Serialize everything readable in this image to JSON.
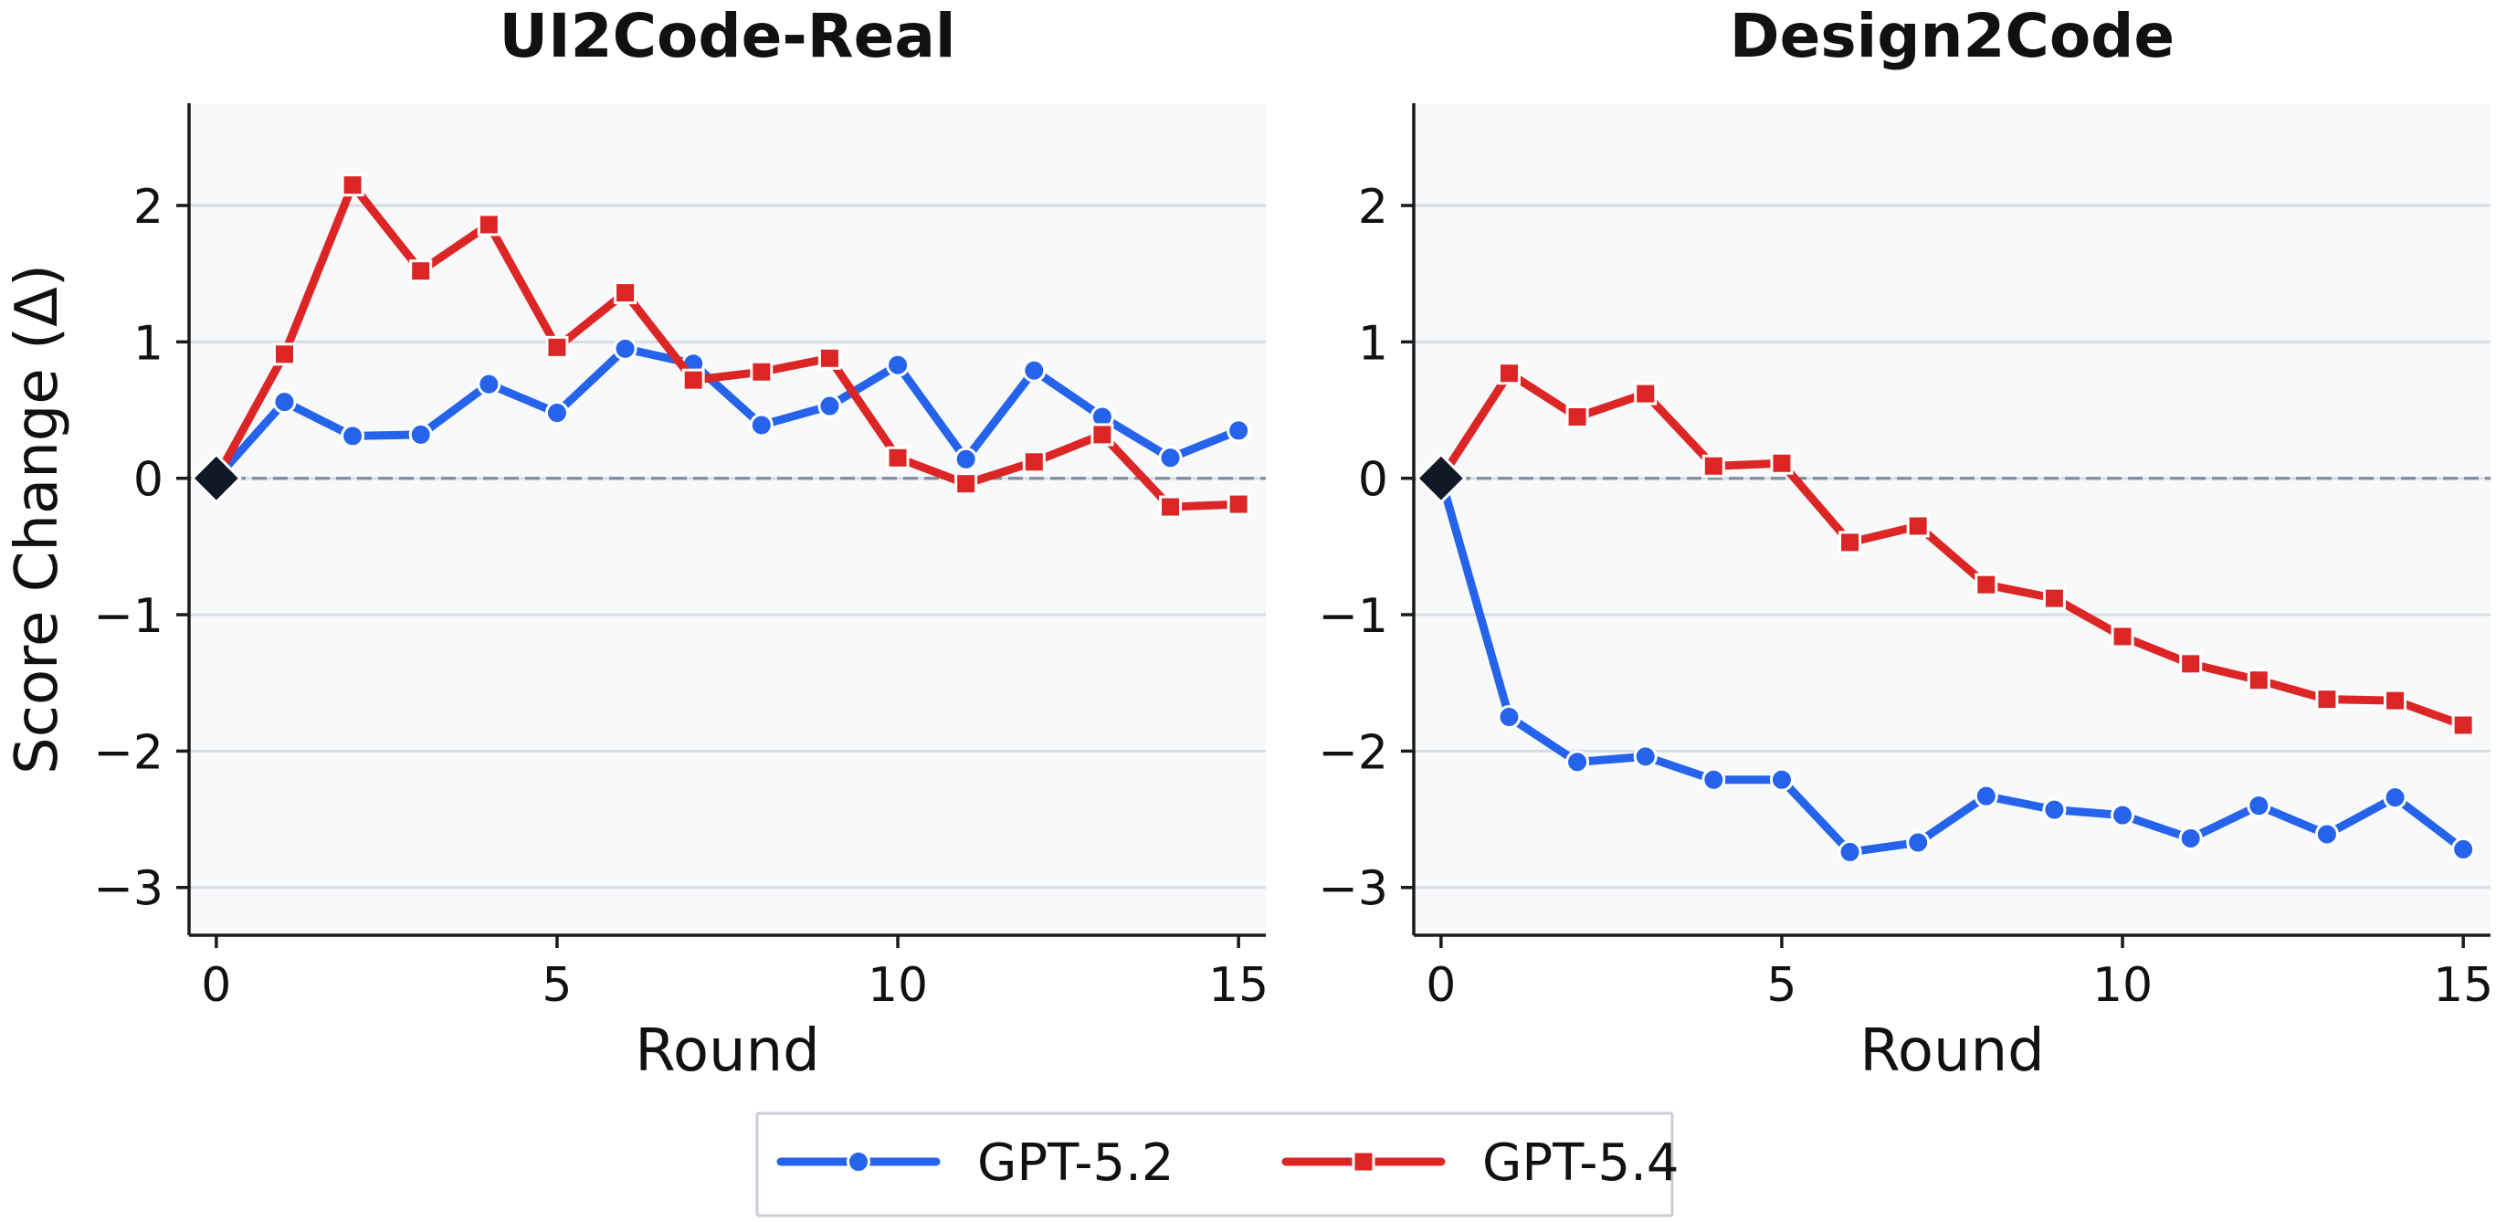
{
  "chart_data": [
    {
      "type": "line",
      "title": "UI2Code-Real",
      "xlabel": "Round",
      "ylabel": "Score Change (Δ)",
      "xlim": [
        -0.4,
        15.4
      ],
      "ylim": [
        -3.35,
        2.75
      ],
      "xticks": [
        0,
        5,
        10,
        15
      ],
      "yticks": [
        -3,
        -2,
        -1,
        0,
        1,
        2
      ],
      "xtick_labels": [
        "0",
        "5",
        "10",
        "15"
      ],
      "ytick_labels": [
        "−3",
        "−2",
        "−1",
        "0",
        "1",
        "2"
      ],
      "grid": "horizontal",
      "reference_line": 0,
      "x": [
        0,
        1,
        2,
        3,
        4,
        5,
        6,
        7,
        8,
        9,
        10,
        11,
        12,
        13,
        14,
        15
      ],
      "series": [
        {
          "name": "GPT-5.2",
          "color": "#2563eb",
          "marker": "circle",
          "values": [
            0,
            0.56,
            0.31,
            0.32,
            0.69,
            0.48,
            0.95,
            0.84,
            0.39,
            0.53,
            0.83,
            0.14,
            0.79,
            0.45,
            0.15,
            0.35
          ]
        },
        {
          "name": "GPT-5.4",
          "color": "#dc2626",
          "marker": "square",
          "values": [
            0,
            0.91,
            2.15,
            1.52,
            1.86,
            0.96,
            1.36,
            0.72,
            0.78,
            0.88,
            0.15,
            -0.04,
            0.12,
            0.32,
            -0.21,
            -0.19
          ]
        }
      ]
    },
    {
      "type": "line",
      "title": "Design2Code",
      "xlabel": "Round",
      "ylabel": "",
      "xlim": [
        -0.4,
        15.4
      ],
      "ylim": [
        -3.35,
        2.75
      ],
      "xticks": [
        0,
        5,
        10,
        15
      ],
      "yticks": [
        -3,
        -2,
        -1,
        0,
        1,
        2
      ],
      "xtick_labels": [
        "0",
        "5",
        "10",
        "15"
      ],
      "ytick_labels": [
        "−3",
        "−2",
        "−1",
        "0",
        "1",
        "2"
      ],
      "grid": "horizontal",
      "reference_line": 0,
      "x": [
        0,
        1,
        2,
        3,
        4,
        5,
        6,
        7,
        8,
        9,
        10,
        11,
        12,
        13,
        14,
        15
      ],
      "series": [
        {
          "name": "GPT-5.2",
          "color": "#2563eb",
          "marker": "circle",
          "values": [
            0,
            -1.75,
            -2.08,
            -2.04,
            -2.21,
            -2.21,
            -2.74,
            -2.67,
            -2.33,
            -2.43,
            -2.47,
            -2.64,
            -2.4,
            -2.61,
            -2.34,
            -2.72
          ]
        },
        {
          "name": "GPT-5.4",
          "color": "#dc2626",
          "marker": "square",
          "values": [
            0,
            0.77,
            0.45,
            0.62,
            0.09,
            0.11,
            -0.47,
            -0.35,
            -0.78,
            -0.88,
            -1.16,
            -1.36,
            -1.48,
            -1.62,
            -1.63,
            -1.81
          ]
        }
      ]
    }
  ],
  "legend": {
    "placement": "bottom-center",
    "entries": [
      {
        "name": "GPT-5.2",
        "color": "#2563eb",
        "marker": "circle"
      },
      {
        "name": "GPT-5.4",
        "color": "#dc2626",
        "marker": "square"
      }
    ]
  },
  "colors": {
    "plot_background": "#f8f9fb",
    "grid": "#d7dce5",
    "reference_line": "#8592a3",
    "start_marker": "#111827",
    "axis": "#1a1a1a"
  }
}
